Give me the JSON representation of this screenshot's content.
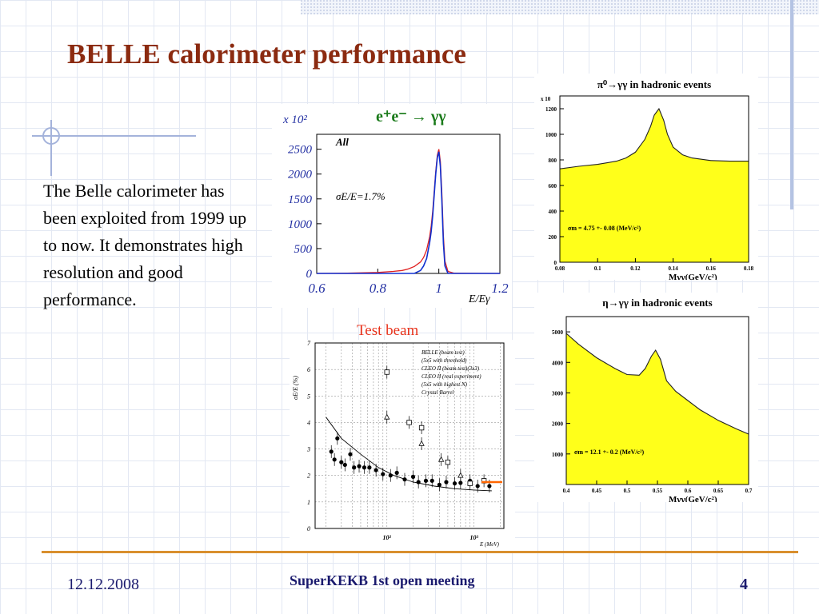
{
  "slide": {
    "title": "BELLE calorimeter performance",
    "body_text": "The Belle calorimeter has been exploited from 1999 up to now. It demonstrates high resolution and good performance.",
    "test_beam_label": "Test beam",
    "footer": {
      "date": "12.12.2008",
      "event": "SuperKEKB 1st open meeting",
      "page": "4"
    }
  },
  "colors": {
    "title": "#8b2a10",
    "footer_text": "#1a1a6e",
    "rule": "#d98f2e",
    "yellow_fill": "#ffff1a",
    "axis_label_blue": "#2431a3"
  },
  "chart_data": [
    {
      "type": "line",
      "title": "e⁺e⁻ → γγ",
      "multiplier": "x 10²",
      "annotations": [
        "All",
        "σE/E=1.7%"
      ],
      "xlabel": "E/Eγ",
      "ylim": [
        0,
        2800
      ],
      "xlim": [
        0.6,
        1.2
      ],
      "xticks": [
        "0.6",
        "0.8",
        "1",
        "1.2"
      ],
      "yticks": [
        "0",
        "500",
        "1000",
        "1500",
        "2000",
        "2500"
      ],
      "x": [
        0.6,
        0.7,
        0.8,
        0.85,
        0.88,
        0.9,
        0.92,
        0.94,
        0.95,
        0.96,
        0.97,
        0.975,
        0.98,
        0.985,
        0.99,
        0.995,
        1.0,
        1.005,
        1.01,
        1.015,
        1.02,
        1.03,
        1.05,
        1.2
      ],
      "series": [
        {
          "color": "#e02020",
          "values": [
            0,
            5,
            20,
            40,
            60,
            90,
            140,
            230,
            320,
            470,
            740,
            950,
            1250,
            1650,
            2050,
            2380,
            2500,
            2250,
            1600,
            750,
            250,
            40,
            5,
            0
          ]
        },
        {
          "color": "#1030d0",
          "values": [
            0,
            0,
            0,
            0,
            0,
            0,
            0,
            60,
            150,
            300,
            620,
            840,
            1160,
            1580,
            2000,
            2330,
            2450,
            2150,
            1450,
            600,
            150,
            0,
            0,
            0
          ]
        }
      ]
    },
    {
      "type": "area",
      "title": "π⁰→γγ in hadronic events",
      "multiplier": "x 10",
      "annotation": "σm = 4.75 +- 0.08 (MeV/c²)",
      "xlabel": "Mγγ(GeV/c²)",
      "xlim": [
        0.08,
        0.18
      ],
      "ylim": [
        0,
        1300
      ],
      "xticks": [
        "0.08",
        "0.1",
        "0.12",
        "0.14",
        "0.16",
        "0.18"
      ],
      "yticks": [
        "0",
        "200",
        "400",
        "600",
        "800",
        "1000",
        "1200"
      ],
      "x": [
        0.08,
        0.09,
        0.1,
        0.11,
        0.115,
        0.12,
        0.125,
        0.128,
        0.13,
        0.1325,
        0.135,
        0.137,
        0.14,
        0.145,
        0.15,
        0.16,
        0.17,
        0.18
      ],
      "values": [
        730,
        750,
        765,
        790,
        815,
        860,
        960,
        1060,
        1150,
        1200,
        1110,
        1000,
        900,
        840,
        815,
        795,
        790,
        790
      ]
    },
    {
      "type": "area",
      "title": "η→γγ in hadronic events",
      "annotation": "σm = 12.1 +- 0.2 (MeV/c²)",
      "xlabel": "Mγγ(GeV/c²)",
      "xlim": [
        0.4,
        0.7
      ],
      "ylim": [
        0,
        5500
      ],
      "xticks": [
        "0.4",
        "0.45",
        "0.5",
        "0.55",
        "0.6",
        "0.65",
        "0.7"
      ],
      "yticks": [
        "1000",
        "2000",
        "3000",
        "4000",
        "5000"
      ],
      "x": [
        0.4,
        0.42,
        0.45,
        0.48,
        0.5,
        0.52,
        0.53,
        0.54,
        0.547,
        0.555,
        0.565,
        0.58,
        0.6,
        0.62,
        0.65,
        0.68,
        0.7
      ],
      "values": [
        4950,
        4600,
        4150,
        3800,
        3600,
        3580,
        3800,
        4200,
        4400,
        4100,
        3400,
        3050,
        2750,
        2450,
        2100,
        1820,
        1650
      ]
    },
    {
      "type": "scatter",
      "xlabel": "E (MeV)",
      "ylabel": "σE/E (%)",
      "xscale": "log",
      "ylim": [
        0,
        7
      ],
      "yticks": [
        "0",
        "1",
        "2",
        "3",
        "4",
        "5",
        "6",
        "7"
      ],
      "xtick_labels": [
        "10²",
        "10³"
      ],
      "legend": [
        "BELLE (beam test)",
        "(5x5 with threshold)",
        "CLEO II (beam test)(3x3)",
        "CLEO II (real experiment)",
        "(5x5 with highest N)",
        "Crystal Barrel"
      ],
      "series": [
        {
          "name": "BELLE (beam test)",
          "marker": "dot",
          "x": [
            23,
            25,
            27,
            30,
            33,
            38,
            42,
            48,
            55,
            63,
            75,
            90,
            110,
            130,
            160,
            200,
            230,
            280,
            330,
            400,
            480,
            600,
            700,
            900,
            1100,
            1500
          ],
          "y": [
            2.9,
            2.6,
            3.4,
            2.5,
            2.4,
            2.8,
            2.3,
            2.35,
            2.3,
            2.3,
            2.2,
            2.05,
            2.0,
            2.1,
            1.85,
            1.95,
            1.75,
            1.8,
            1.8,
            1.65,
            1.75,
            1.7,
            1.72,
            1.8,
            1.6,
            1.6
          ]
        },
        {
          "name": "CLEO II (beam test)(3x3)",
          "marker": "square",
          "x": [
            100,
            180,
            250,
            500,
            900,
            1300
          ],
          "y": [
            5.9,
            4.0,
            3.8,
            2.5,
            1.7,
            1.8
          ]
        },
        {
          "name": "CLEO II (real experiment)",
          "marker": "triangle",
          "x": [
            100,
            250,
            420,
            700
          ],
          "y": [
            4.2,
            3.2,
            2.6,
            2.0
          ]
        }
      ],
      "fit_curve": {
        "x": [
          20,
          30,
          50,
          80,
          120,
          200,
          350,
          600,
          1000,
          1600
        ],
        "y": [
          4.2,
          3.4,
          2.8,
          2.3,
          2.0,
          1.75,
          1.6,
          1.5,
          1.45,
          1.42
        ]
      }
    }
  ]
}
